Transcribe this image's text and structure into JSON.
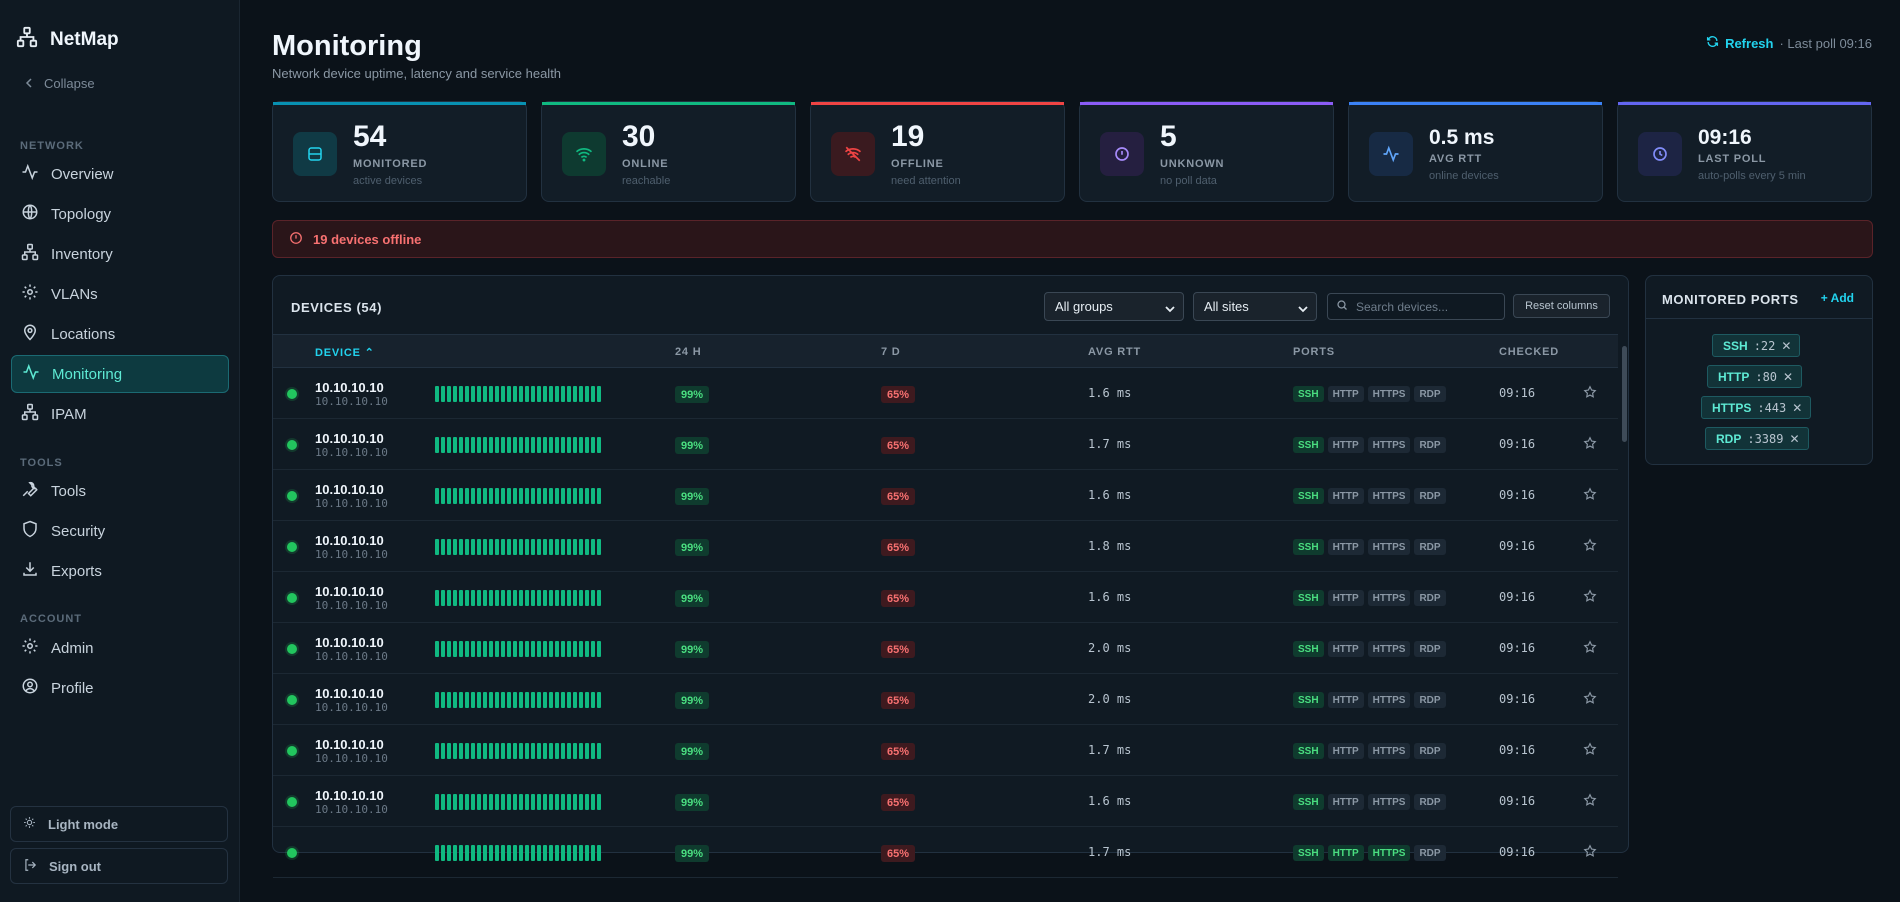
{
  "sidebar": {
    "brand": "NetMap",
    "collapse_label": "Collapse",
    "sections": [
      "NETWORK",
      "TOOLS",
      "ACCOUNT"
    ],
    "items": [
      {
        "label": "Overview",
        "icon": "activity-icon"
      },
      {
        "label": "Topology",
        "icon": "globe-icon"
      },
      {
        "label": "Inventory",
        "icon": "network-icon"
      },
      {
        "label": "VLANs",
        "icon": "gear-icon"
      },
      {
        "label": "Locations",
        "icon": "pin-icon"
      },
      {
        "label": "Monitoring",
        "icon": "activity-icon",
        "active": true
      },
      {
        "label": "IPAM",
        "icon": "network-icon"
      },
      {
        "label": "Tools",
        "icon": "wrench-icon"
      },
      {
        "label": "Security",
        "icon": "shield-icon"
      },
      {
        "label": "Exports",
        "icon": "download-icon"
      },
      {
        "label": "Admin",
        "icon": "gear-icon"
      },
      {
        "label": "Profile",
        "icon": "user-circle-icon"
      }
    ],
    "light_mode_label": "Light mode",
    "sign_out_label": "Sign out"
  },
  "header": {
    "title": "Monitoring",
    "subtitle": "Network device uptime, latency and service health",
    "refresh_label": "Refresh",
    "last_poll": "· Last poll 09:16"
  },
  "stats": [
    {
      "value": "54",
      "label": "MONITORED",
      "sub": "active devices",
      "color": "#0891b2"
    },
    {
      "value": "30",
      "label": "ONLINE",
      "sub": "reachable",
      "color": "#10b981"
    },
    {
      "value": "19",
      "label": "OFFLINE",
      "sub": "need attention",
      "color": "#ef4444"
    },
    {
      "value": "5",
      "label": "UNKNOWN",
      "sub": "no poll data",
      "color": "#8b5cf6"
    },
    {
      "value": "0.5 ms",
      "label": "AVG RTT",
      "sub": "online devices",
      "color": "#3b82f6"
    },
    {
      "value": "09:16",
      "label": "LAST POLL",
      "sub": "auto-polls every 5 min",
      "color": "#6366f1"
    }
  ],
  "alert": {
    "text": "19 devices offline"
  },
  "devices": {
    "title": "DEVICES (54)",
    "group_filter": "All groups",
    "site_filter": "All sites",
    "search_placeholder": "Search devices...",
    "reset_label": "Reset columns",
    "columns": [
      "DEVICE",
      "24 H",
      "7 D",
      "AVG RTT",
      "PORTS",
      "CHECKED"
    ],
    "rows": [
      {
        "name": "10.10.10.10",
        "ip": "10.10.10.10",
        "day": "99%",
        "week": "65%",
        "rtt": "1.6 ms",
        "checked": "09:16"
      },
      {
        "name": "10.10.10.10",
        "ip": "10.10.10.10",
        "day": "99%",
        "week": "65%",
        "rtt": "1.7 ms",
        "checked": "09:16"
      },
      {
        "name": "10.10.10.10",
        "ip": "10.10.10.10",
        "day": "99%",
        "week": "65%",
        "rtt": "1.6 ms",
        "checked": "09:16"
      },
      {
        "name": "10.10.10.10",
        "ip": "10.10.10.10",
        "day": "99%",
        "week": "65%",
        "rtt": "1.8 ms",
        "checked": "09:16"
      },
      {
        "name": "10.10.10.10",
        "ip": "10.10.10.10",
        "day": "99%",
        "week": "65%",
        "rtt": "1.6 ms",
        "checked": "09:16"
      },
      {
        "name": "10.10.10.10",
        "ip": "10.10.10.10",
        "day": "99%",
        "week": "65%",
        "rtt": "2.0 ms",
        "checked": "09:16"
      },
      {
        "name": "10.10.10.10",
        "ip": "10.10.10.10",
        "day": "99%",
        "week": "65%",
        "rtt": "2.0 ms",
        "checked": "09:16"
      },
      {
        "name": "10.10.10.10",
        "ip": "10.10.10.10",
        "day": "99%",
        "week": "65%",
        "rtt": "1.7 ms",
        "checked": "09:16"
      },
      {
        "name": "10.10.10.10",
        "ip": "10.10.10.10",
        "day": "99%",
        "week": "65%",
        "rtt": "1.6 ms",
        "checked": "09:16"
      },
      {
        "name": "",
        "ip": "",
        "day": "99%",
        "week": "65%",
        "rtt": "1.7 ms",
        "checked": "09:16"
      }
    ],
    "port_labels": [
      "SSH",
      "HTTP",
      "HTTPS",
      "RDP"
    ]
  },
  "monitored_ports": {
    "title": "MONITORED PORTS",
    "add_label": "+ Add",
    "ports": [
      {
        "name": "SSH",
        "port": ":22"
      },
      {
        "name": "HTTP",
        "port": ":80"
      },
      {
        "name": "HTTPS",
        "port": ":443"
      },
      {
        "name": "RDP",
        "port": ":3389"
      }
    ]
  }
}
